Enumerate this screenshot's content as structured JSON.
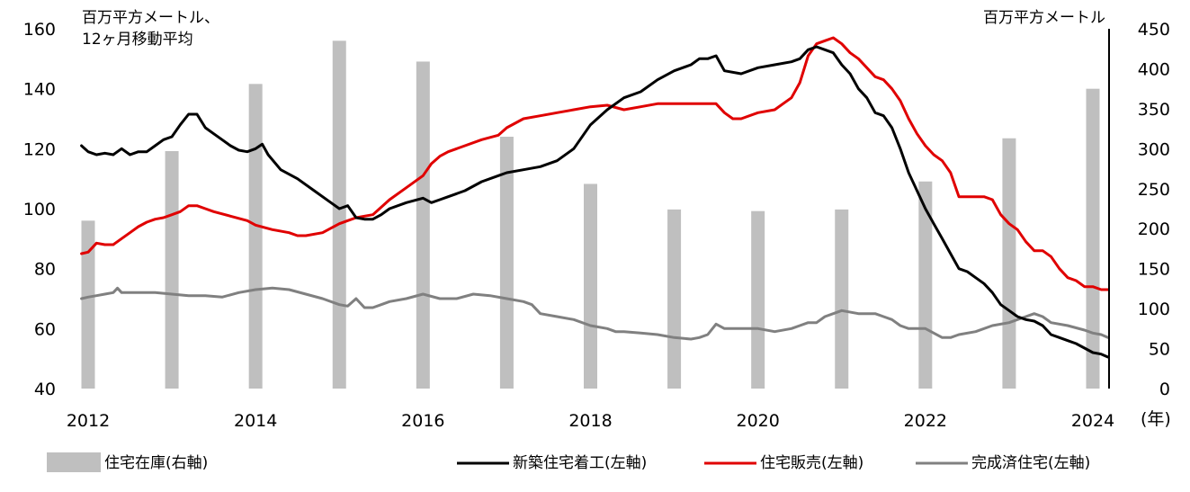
{
  "chart_data": {
    "type": "bar+line",
    "left_unit_label_lines": [
      "百万平方メートル、",
      "12ヶ月移動平均"
    ],
    "right_unit_label": "百万平方メートル",
    "x_unit_label": "(年)",
    "x_ticks": [
      2012,
      2014,
      2016,
      2018,
      2020,
      2022,
      2024
    ],
    "left_axis": {
      "min": 40,
      "max": 160,
      "ticks": [
        40,
        60,
        80,
        100,
        120,
        140,
        160
      ]
    },
    "right_axis": {
      "min": 0,
      "max": 450,
      "ticks": [
        0,
        50,
        100,
        150,
        200,
        250,
        300,
        350,
        400,
        450
      ]
    },
    "bars": {
      "name": "住宅在庫(右軸)",
      "axis": "right",
      "color": "#bfbfbf",
      "points": [
        {
          "x": 2012.0,
          "y": 210
        },
        {
          "x": 2013.0,
          "y": 297
        },
        {
          "x": 2014.0,
          "y": 381
        },
        {
          "x": 2015.0,
          "y": 435
        },
        {
          "x": 2016.0,
          "y": 409
        },
        {
          "x": 2017.0,
          "y": 315
        },
        {
          "x": 2018.0,
          "y": 256
        },
        {
          "x": 2019.0,
          "y": 224
        },
        {
          "x": 2020.0,
          "y": 222
        },
        {
          "x": 2021.0,
          "y": 224
        },
        {
          "x": 2022.0,
          "y": 259
        },
        {
          "x": 2023.0,
          "y": 313
        },
        {
          "x": 2024.0,
          "y": 375
        }
      ]
    },
    "series": [
      {
        "name": "新築住宅着工(左軸)",
        "axis": "left",
        "color": "#000000",
        "points": [
          [
            2011.92,
            121
          ],
          [
            2012.0,
            119
          ],
          [
            2012.1,
            118
          ],
          [
            2012.2,
            118.5
          ],
          [
            2012.3,
            118
          ],
          [
            2012.4,
            120
          ],
          [
            2012.5,
            118
          ],
          [
            2012.6,
            119
          ],
          [
            2012.7,
            119
          ],
          [
            2012.8,
            121
          ],
          [
            2012.9,
            123
          ],
          [
            2013.0,
            124
          ],
          [
            2013.1,
            128
          ],
          [
            2013.2,
            131.5
          ],
          [
            2013.3,
            131.5
          ],
          [
            2013.4,
            127
          ],
          [
            2013.5,
            125
          ],
          [
            2013.6,
            123
          ],
          [
            2013.7,
            121
          ],
          [
            2013.8,
            119.5
          ],
          [
            2013.9,
            119
          ],
          [
            2014.0,
            120
          ],
          [
            2014.08,
            121.5
          ],
          [
            2014.15,
            118
          ],
          [
            2014.3,
            113
          ],
          [
            2014.5,
            110
          ],
          [
            2014.7,
            106
          ],
          [
            2014.9,
            102
          ],
          [
            2015.0,
            100
          ],
          [
            2015.1,
            101
          ],
          [
            2015.2,
            97
          ],
          [
            2015.3,
            96.5
          ],
          [
            2015.4,
            96.5
          ],
          [
            2015.5,
            98
          ],
          [
            2015.6,
            100
          ],
          [
            2015.8,
            102
          ],
          [
            2016.0,
            103.5
          ],
          [
            2016.1,
            102
          ],
          [
            2016.2,
            103
          ],
          [
            2016.3,
            104
          ],
          [
            2016.5,
            106
          ],
          [
            2016.7,
            109
          ],
          [
            2016.9,
            111
          ],
          [
            2017.0,
            112
          ],
          [
            2017.2,
            113
          ],
          [
            2017.4,
            114
          ],
          [
            2017.6,
            116
          ],
          [
            2017.8,
            120
          ],
          [
            2018.0,
            128
          ],
          [
            2018.2,
            133
          ],
          [
            2018.4,
            137
          ],
          [
            2018.6,
            139
          ],
          [
            2018.8,
            143
          ],
          [
            2019.0,
            146
          ],
          [
            2019.2,
            148
          ],
          [
            2019.3,
            150
          ],
          [
            2019.4,
            150
          ],
          [
            2019.5,
            151
          ],
          [
            2019.6,
            146
          ],
          [
            2019.8,
            145
          ],
          [
            2020.0,
            147
          ],
          [
            2020.2,
            148
          ],
          [
            2020.4,
            149
          ],
          [
            2020.5,
            150
          ],
          [
            2020.6,
            153
          ],
          [
            2020.7,
            154
          ],
          [
            2020.8,
            153
          ],
          [
            2020.9,
            152
          ],
          [
            2021.0,
            148
          ],
          [
            2021.1,
            145
          ],
          [
            2021.2,
            140
          ],
          [
            2021.3,
            137
          ],
          [
            2021.4,
            132
          ],
          [
            2021.5,
            131
          ],
          [
            2021.6,
            127
          ],
          [
            2021.7,
            120
          ],
          [
            2021.8,
            112
          ],
          [
            2021.9,
            106
          ],
          [
            2022.0,
            100
          ],
          [
            2022.1,
            95
          ],
          [
            2022.2,
            90
          ],
          [
            2022.3,
            85
          ],
          [
            2022.4,
            80
          ],
          [
            2022.5,
            79
          ],
          [
            2022.6,
            77
          ],
          [
            2022.7,
            75
          ],
          [
            2022.8,
            72
          ],
          [
            2022.9,
            68
          ],
          [
            2023.0,
            66
          ],
          [
            2023.1,
            64
          ],
          [
            2023.2,
            63
          ],
          [
            2023.3,
            62.5
          ],
          [
            2023.4,
            61
          ],
          [
            2023.5,
            58
          ],
          [
            2023.6,
            57
          ],
          [
            2023.7,
            56
          ],
          [
            2023.8,
            55
          ],
          [
            2023.9,
            53.5
          ],
          [
            2024.0,
            52
          ],
          [
            2024.1,
            51.5
          ],
          [
            2024.18,
            50.5
          ]
        ]
      },
      {
        "name": "住宅販売(左軸)",
        "axis": "left",
        "color": "#e00000",
        "points": [
          [
            2011.92,
            85
          ],
          [
            2012.0,
            85.5
          ],
          [
            2012.1,
            88.5
          ],
          [
            2012.2,
            88
          ],
          [
            2012.3,
            88
          ],
          [
            2012.4,
            90
          ],
          [
            2012.5,
            92
          ],
          [
            2012.6,
            94
          ],
          [
            2012.7,
            95.5
          ],
          [
            2012.8,
            96.5
          ],
          [
            2012.9,
            97
          ],
          [
            2013.0,
            98
          ],
          [
            2013.1,
            99
          ],
          [
            2013.2,
            101
          ],
          [
            2013.3,
            101
          ],
          [
            2013.4,
            100
          ],
          [
            2013.5,
            99
          ],
          [
            2013.7,
            97.5
          ],
          [
            2013.9,
            96
          ],
          [
            2014.0,
            94.5
          ],
          [
            2014.2,
            93
          ],
          [
            2014.4,
            92
          ],
          [
            2014.5,
            91
          ],
          [
            2014.6,
            91
          ],
          [
            2014.8,
            92
          ],
          [
            2014.9,
            93.5
          ],
          [
            2015.0,
            95
          ],
          [
            2015.1,
            96
          ],
          [
            2015.2,
            97
          ],
          [
            2015.4,
            98
          ],
          [
            2015.6,
            103
          ],
          [
            2015.8,
            107
          ],
          [
            2016.0,
            111
          ],
          [
            2016.1,
            115
          ],
          [
            2016.2,
            117.5
          ],
          [
            2016.3,
            119
          ],
          [
            2016.5,
            121
          ],
          [
            2016.7,
            123
          ],
          [
            2016.9,
            124.5
          ],
          [
            2017.0,
            127
          ],
          [
            2017.2,
            130
          ],
          [
            2017.4,
            131
          ],
          [
            2017.6,
            132
          ],
          [
            2017.8,
            133
          ],
          [
            2018.0,
            134
          ],
          [
            2018.2,
            134.5
          ],
          [
            2018.4,
            133
          ],
          [
            2018.6,
            134
          ],
          [
            2018.8,
            135
          ],
          [
            2019.0,
            135
          ],
          [
            2019.2,
            135
          ],
          [
            2019.4,
            135
          ],
          [
            2019.5,
            135
          ],
          [
            2019.6,
            132
          ],
          [
            2019.7,
            130
          ],
          [
            2019.8,
            130
          ],
          [
            2020.0,
            132
          ],
          [
            2020.2,
            133
          ],
          [
            2020.3,
            135
          ],
          [
            2020.4,
            137
          ],
          [
            2020.5,
            142
          ],
          [
            2020.6,
            151
          ],
          [
            2020.7,
            155
          ],
          [
            2020.8,
            156
          ],
          [
            2020.9,
            157
          ],
          [
            2021.0,
            155
          ],
          [
            2021.1,
            152
          ],
          [
            2021.2,
            150
          ],
          [
            2021.3,
            147
          ],
          [
            2021.4,
            144
          ],
          [
            2021.5,
            143
          ],
          [
            2021.6,
            140
          ],
          [
            2021.7,
            136
          ],
          [
            2021.8,
            130
          ],
          [
            2021.9,
            125
          ],
          [
            2022.0,
            121
          ],
          [
            2022.1,
            118
          ],
          [
            2022.2,
            116
          ],
          [
            2022.3,
            112
          ],
          [
            2022.4,
            104
          ],
          [
            2022.5,
            104
          ],
          [
            2022.6,
            104
          ],
          [
            2022.7,
            104
          ],
          [
            2022.8,
            103
          ],
          [
            2022.9,
            98
          ],
          [
            2023.0,
            95
          ],
          [
            2023.1,
            93
          ],
          [
            2023.2,
            89
          ],
          [
            2023.3,
            86
          ],
          [
            2023.4,
            86
          ],
          [
            2023.5,
            84
          ],
          [
            2023.6,
            80
          ],
          [
            2023.7,
            77
          ],
          [
            2023.8,
            76
          ],
          [
            2023.9,
            74
          ],
          [
            2024.0,
            74
          ],
          [
            2024.1,
            73
          ],
          [
            2024.18,
            73
          ]
        ]
      },
      {
        "name": "完成済住宅(左軸)",
        "axis": "left",
        "color": "#808080",
        "points": [
          [
            2011.92,
            70
          ],
          [
            2012.0,
            70.5
          ],
          [
            2012.1,
            71
          ],
          [
            2012.2,
            71.5
          ],
          [
            2012.3,
            72
          ],
          [
            2012.35,
            73.5
          ],
          [
            2012.4,
            72
          ],
          [
            2012.6,
            72
          ],
          [
            2012.8,
            72
          ],
          [
            2013.0,
            71.5
          ],
          [
            2013.2,
            71
          ],
          [
            2013.4,
            71
          ],
          [
            2013.6,
            70.5
          ],
          [
            2013.8,
            72
          ],
          [
            2014.0,
            73
          ],
          [
            2014.2,
            73.5
          ],
          [
            2014.4,
            73
          ],
          [
            2014.6,
            71.5
          ],
          [
            2014.8,
            70
          ],
          [
            2015.0,
            68
          ],
          [
            2015.1,
            67.5
          ],
          [
            2015.2,
            70
          ],
          [
            2015.3,
            67
          ],
          [
            2015.4,
            67
          ],
          [
            2015.5,
            68
          ],
          [
            2015.6,
            69
          ],
          [
            2015.8,
            70
          ],
          [
            2016.0,
            71.5
          ],
          [
            2016.2,
            70
          ],
          [
            2016.4,
            70
          ],
          [
            2016.6,
            71.5
          ],
          [
            2016.8,
            71
          ],
          [
            2017.0,
            70
          ],
          [
            2017.2,
            69
          ],
          [
            2017.3,
            68
          ],
          [
            2017.4,
            65
          ],
          [
            2017.6,
            64
          ],
          [
            2017.8,
            63
          ],
          [
            2018.0,
            61
          ],
          [
            2018.2,
            60
          ],
          [
            2018.3,
            59
          ],
          [
            2018.4,
            59
          ],
          [
            2018.6,
            58.5
          ],
          [
            2018.8,
            58
          ],
          [
            2019.0,
            57
          ],
          [
            2019.2,
            56.5
          ],
          [
            2019.3,
            57
          ],
          [
            2019.4,
            58
          ],
          [
            2019.5,
            61.5
          ],
          [
            2019.6,
            60
          ],
          [
            2019.8,
            60
          ],
          [
            2020.0,
            60
          ],
          [
            2020.2,
            59
          ],
          [
            2020.4,
            60
          ],
          [
            2020.5,
            61
          ],
          [
            2020.6,
            62
          ],
          [
            2020.7,
            62
          ],
          [
            2020.8,
            64
          ],
          [
            2020.9,
            65
          ],
          [
            2021.0,
            66
          ],
          [
            2021.2,
            65
          ],
          [
            2021.4,
            65
          ],
          [
            2021.5,
            64
          ],
          [
            2021.6,
            63
          ],
          [
            2021.7,
            61
          ],
          [
            2021.8,
            60
          ],
          [
            2022.0,
            60
          ],
          [
            2022.2,
            57
          ],
          [
            2022.3,
            57
          ],
          [
            2022.4,
            58
          ],
          [
            2022.6,
            59
          ],
          [
            2022.8,
            61
          ],
          [
            2023.0,
            62
          ],
          [
            2023.2,
            64
          ],
          [
            2023.3,
            65
          ],
          [
            2023.4,
            64
          ],
          [
            2023.5,
            62
          ],
          [
            2023.7,
            61
          ],
          [
            2023.9,
            59.5
          ],
          [
            2024.0,
            58.5
          ],
          [
            2024.1,
            58
          ],
          [
            2024.18,
            57
          ]
        ]
      }
    ],
    "legend": [
      {
        "label": "住宅在庫(右軸)",
        "kind": "bar",
        "color": "#bfbfbf"
      },
      {
        "label": "新築住宅着工(左軸)",
        "kind": "line",
        "color": "#000000"
      },
      {
        "label": "住宅販売(左軸)",
        "kind": "line",
        "color": "#e00000"
      },
      {
        "label": "完成済住宅(左軸)",
        "kind": "line",
        "color": "#808080"
      }
    ]
  }
}
